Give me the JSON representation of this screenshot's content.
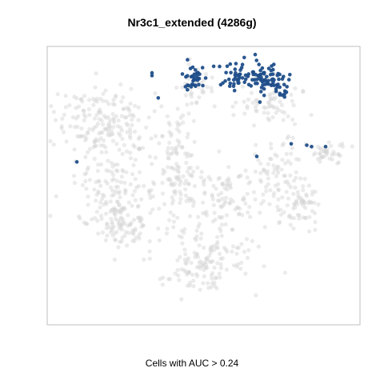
{
  "chart_data": {
    "type": "scatter",
    "title": "Nr3c1_extended (4286g)",
    "xlabel": "",
    "ylabel": "",
    "caption": "Cells with AUC > 0.24",
    "grid": false,
    "axes_ticks": false,
    "colors": {
      "background_cells": "#d3d3d3",
      "highlighted_cells": "#1f4e8a",
      "frame": "#bfbfbf"
    },
    "series": [
      {
        "role": "background",
        "clusters": [
          {
            "cx": 18,
            "cy": 27,
            "rx": 14,
            "ry": 12,
            "n": 170
          },
          {
            "cx": 22,
            "cy": 52,
            "rx": 12,
            "ry": 14,
            "n": 150
          },
          {
            "cx": 24,
            "cy": 64,
            "rx": 10,
            "ry": 7,
            "n": 70
          },
          {
            "cx": 42,
            "cy": 42,
            "rx": 6,
            "ry": 18,
            "n": 110
          },
          {
            "cx": 50,
            "cy": 76,
            "rx": 15,
            "ry": 12,
            "n": 150
          },
          {
            "cx": 56,
            "cy": 55,
            "rx": 10,
            "ry": 11,
            "n": 90
          },
          {
            "cx": 72,
            "cy": 45,
            "rx": 8,
            "ry": 12,
            "n": 80
          },
          {
            "cx": 81,
            "cy": 57,
            "rx": 6,
            "ry": 8,
            "n": 60
          },
          {
            "cx": 90,
            "cy": 38,
            "rx": 6,
            "ry": 4,
            "n": 40
          },
          {
            "cx": 70,
            "cy": 20,
            "rx": 10,
            "ry": 7,
            "n": 70
          },
          {
            "cx": 47,
            "cy": 15,
            "rx": 6,
            "ry": 6,
            "n": 40
          }
        ]
      },
      {
        "role": "highlighted",
        "clusters": [
          {
            "cx": 47.5,
            "cy": 11,
            "rx": 3.5,
            "ry": 4,
            "n": 35
          },
          {
            "cx": 61,
            "cy": 11,
            "rx": 5,
            "ry": 4,
            "n": 45
          },
          {
            "cx": 70,
            "cy": 11,
            "rx": 5,
            "ry": 5,
            "n": 55
          },
          {
            "cx": 74,
            "cy": 15,
            "rx": 3,
            "ry": 4,
            "n": 20
          }
        ],
        "points": [
          [
            33.5,
            9.5
          ],
          [
            33.5,
            10.5
          ],
          [
            35.5,
            18.5
          ],
          [
            63,
            4
          ],
          [
            67,
            39.5
          ],
          [
            78,
            35
          ],
          [
            83,
            35.5
          ],
          [
            84.5,
            36
          ],
          [
            89,
            36
          ],
          [
            9.5,
            41.5
          ],
          [
            68,
            20
          ]
        ]
      }
    ]
  }
}
